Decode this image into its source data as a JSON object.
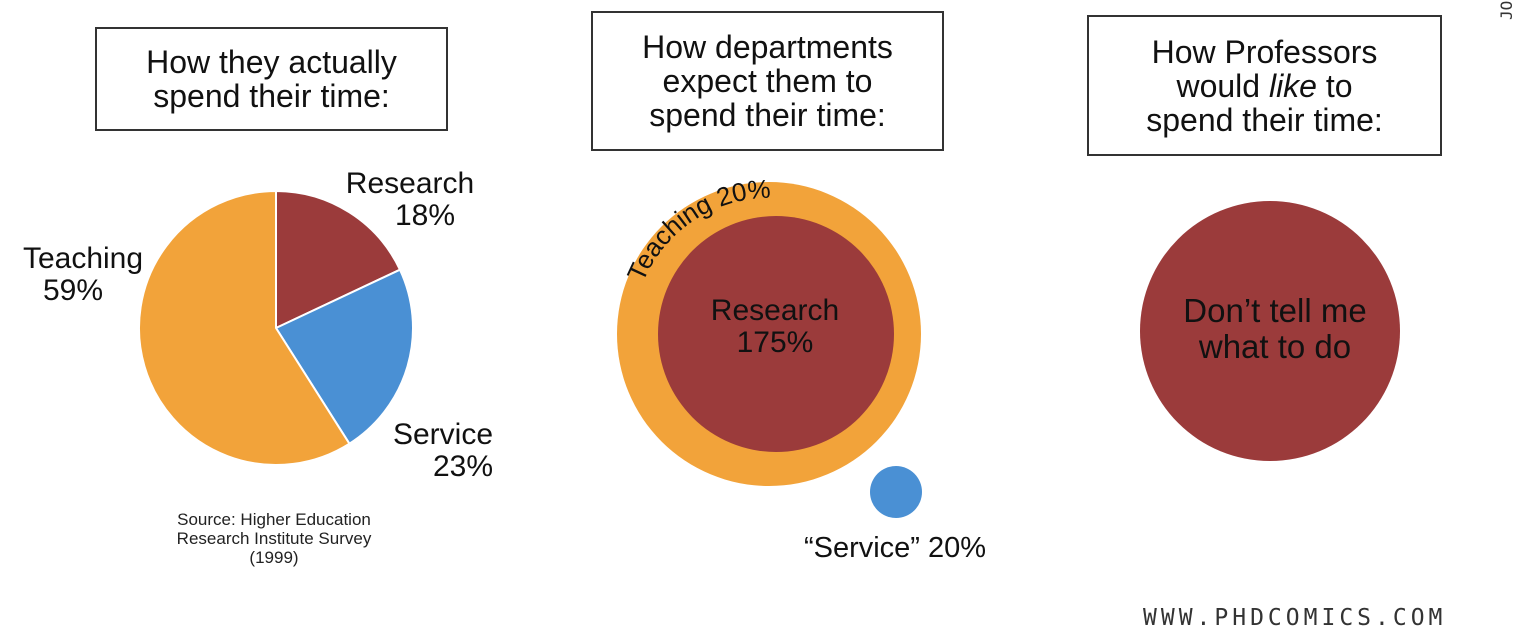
{
  "panels": [
    {
      "title_lines": [
        "How they actually",
        "spend their time:"
      ]
    },
    {
      "title_lines": [
        "How departments",
        "expect them to",
        "spend their time:"
      ]
    },
    {
      "title_lines": [
        "How Professors",
        "would",
        "like",
        "to",
        "spend their time:"
      ]
    }
  ],
  "pie_labels": {
    "research": {
      "name": "Research",
      "pct": "18%"
    },
    "teaching": {
      "name": "Teaching",
      "pct": "59%"
    },
    "service": {
      "name": "Service",
      "pct": "23%"
    }
  },
  "source_lines": [
    "Source: Higher Education",
    "Research Institute Survey",
    "(1999)"
  ],
  "expected": {
    "teaching_label": "Teaching 20%",
    "research_name": "Research",
    "research_pct": "175%",
    "service_label": "“Service” 20%"
  },
  "ideal": {
    "lines": [
      "Don’t tell me",
      "what to do"
    ]
  },
  "credit": "WWW.PHDCOMICS.COM",
  "signature": "JORGE CHAM",
  "colors": {
    "teaching": "#F2A33A",
    "research": "#9B3B3B",
    "service": "#4A90D4"
  },
  "chart_data": [
    {
      "type": "pie",
      "title": "How they actually spend their time:",
      "slices": [
        {
          "label": "Research",
          "value": 18
        },
        {
          "label": "Service",
          "value": 23
        },
        {
          "label": "Teaching",
          "value": 59
        }
      ]
    },
    {
      "type": "bubble",
      "title": "How departments expect them to spend their time:",
      "items": [
        {
          "label": "Teaching",
          "value": 20
        },
        {
          "label": "Research",
          "value": 175
        },
        {
          "label": "Service",
          "value": 20
        }
      ]
    },
    {
      "type": "bubble",
      "title": "How Professors would like to spend their time:",
      "items": [
        {
          "label": "Don’t tell me what to do"
        }
      ]
    }
  ]
}
